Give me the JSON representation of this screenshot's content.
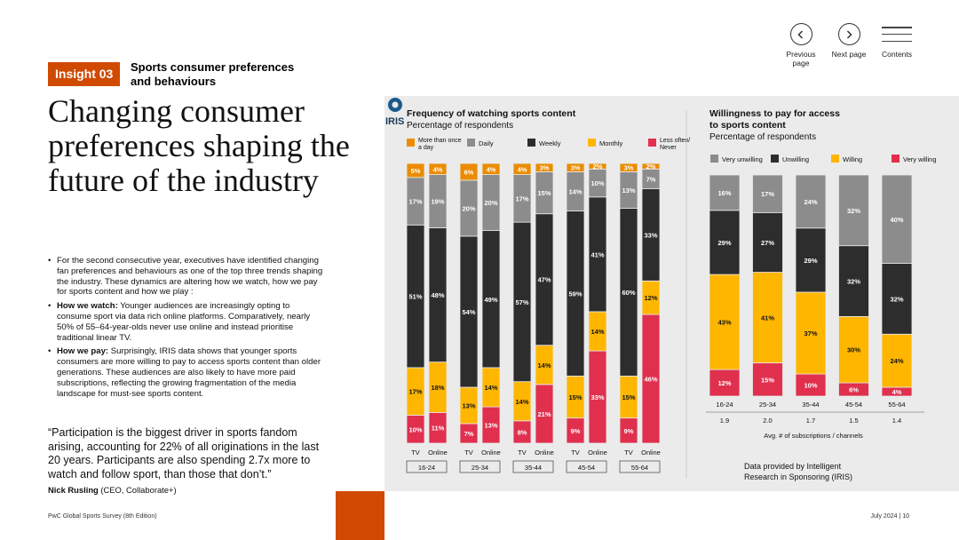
{
  "nav": {
    "previous_label": "Previous page",
    "next_label": "Next page",
    "contents_label": "Contents"
  },
  "header": {
    "badge": "Insight 03",
    "subtitle": "Sports consumer preferences and behaviours",
    "headline": "Changing consumer preferences shaping the future of the industry"
  },
  "body": {
    "bullets": [
      {
        "bold": "",
        "text": "For the second consecutive year, executives have identified changing fan preferences and behaviours as one of the top three trends shaping the industry. These dynamics are altering how we watch, how we pay for sports content and how we play :"
      },
      {
        "bold": "How we watch:",
        "text": " Younger audiences are increasingly opting to consume sport via data rich online platforms. Comparatively, nearly 50% of 55–64-year-olds never use online and instead prioritise traditional linear TV."
      },
      {
        "bold": "How we pay:",
        "text": " Surprisingly, IRIS data shows that younger sports consumers are more willing to pay to access sports content than older generations. These audiences are also likely to have more paid subscriptions, reflecting the growing fragmentation of the media landscape for must-see sports content."
      }
    ],
    "quote": "“Participation is the biggest driver in sports fandom arising, accounting for 22% of all originations in the last 20 years. Participants are also spending 2.7x more to watch and follow sport, than those that don’t.”",
    "quote_author_name": "Nick Rusling",
    "quote_author_role": " (CEO, Collaborate+)"
  },
  "footer": {
    "left": "PwC Global Sports Survey (8th Edition)",
    "right": "July 2024 | 10"
  },
  "source": {
    "logo_text": "IRIS",
    "text": "Data provided by Intelligent Research in Sponsoring (IRIS)"
  },
  "chart_data": [
    {
      "type": "bar",
      "stacked": true,
      "title": "Frequency of watching sports content",
      "subtitle": "Percentage of respondents",
      "groups": [
        "16-24",
        "25-34",
        "35-44",
        "45-54",
        "55-64"
      ],
      "bar_labels": [
        "TV",
        "Online"
      ],
      "categories": [
        "16-24 TV",
        "16-24 Online",
        "25-34 TV",
        "25-34 Online",
        "35-44 TV",
        "35-44 Online",
        "45-54 TV",
        "45-54 Online",
        "55-64 TV",
        "55-64 Online"
      ],
      "series": [
        {
          "name": "Less often/ Never",
          "color": "#e0304e",
          "values": [
            10,
            11,
            7,
            13,
            8,
            21,
            9,
            33,
            9,
            46
          ]
        },
        {
          "name": "Monthly",
          "color": "#ffb600",
          "values": [
            17,
            18,
            13,
            14,
            14,
            14,
            15,
            14,
            15,
            12
          ]
        },
        {
          "name": "Weekly",
          "color": "#2d2d2d",
          "values": [
            51,
            48,
            54,
            49,
            57,
            47,
            59,
            41,
            60,
            33
          ]
        },
        {
          "name": "Daily",
          "color": "#8c8c8c",
          "values": [
            17,
            19,
            20,
            20,
            17,
            15,
            14,
            10,
            13,
            7
          ]
        },
        {
          "name": "More than once a day",
          "color": "#eb8c00",
          "values": [
            5,
            4,
            6,
            4,
            4,
            3,
            3,
            2,
            3,
            2
          ]
        }
      ],
      "legend_order": [
        "More than once a day",
        "Daily",
        "Weekly",
        "Monthly",
        "Less often/ Never"
      ],
      "legend_position": "top",
      "ylim": [
        0,
        100
      ]
    },
    {
      "type": "bar",
      "stacked": true,
      "title": "Willingness to pay for access to sports content",
      "subtitle": "Percentage of respondents",
      "categories": [
        "16-24",
        "25-34",
        "35-44",
        "45-54",
        "55-64"
      ],
      "series": [
        {
          "name": "Very willing",
          "color": "#e0304e",
          "values": [
            12,
            15,
            10,
            6,
            4
          ]
        },
        {
          "name": "Willing",
          "color": "#ffb600",
          "values": [
            43,
            41,
            37,
            30,
            24
          ]
        },
        {
          "name": "Unwilling",
          "color": "#2d2d2d",
          "values": [
            29,
            27,
            29,
            32,
            32
          ]
        },
        {
          "name": "Very unwilling",
          "color": "#8c8c8c",
          "values": [
            16,
            17,
            24,
            32,
            40
          ]
        }
      ],
      "legend_order": [
        "Very unwilling",
        "Unwilling",
        "Willing",
        "Very willing"
      ],
      "legend_position": "top",
      "secondary_values": [
        "1.9",
        "2.0",
        "1.7",
        "1.5",
        "1.4"
      ],
      "secondary_label": "Avg. # of subscriptions / channels",
      "ylim": [
        0,
        100
      ]
    }
  ]
}
